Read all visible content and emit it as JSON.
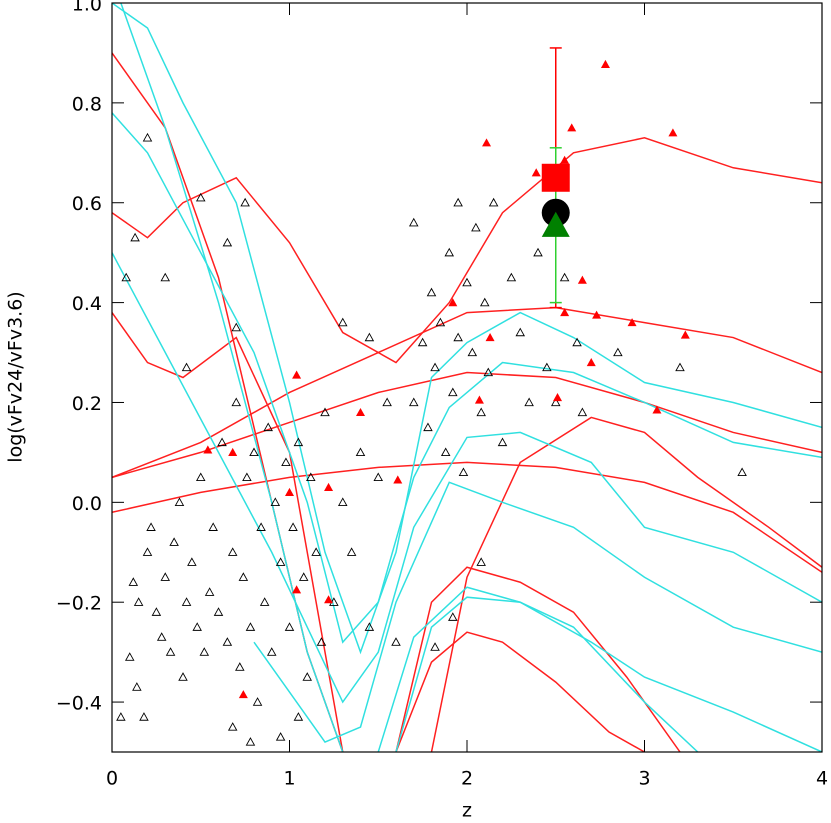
{
  "chart_data": {
    "type": "scatter",
    "x_label": "z",
    "y_label": "log(vFv24/vFv3.6)",
    "xlim": [
      0,
      4
    ],
    "ylim": [
      -0.5,
      1.0
    ],
    "xticks": [
      0,
      1,
      2,
      3,
      4
    ],
    "yticks": [
      {
        "value": -0.4,
        "label": "−0.4"
      },
      {
        "value": -0.2,
        "label": "−0.2"
      },
      {
        "value": 0.0,
        "label": "0.0"
      },
      0.2,
      0.4,
      0.6,
      0.8,
      {
        "value": 1.0,
        "label": "1.0"
      }
    ],
    "series": [
      {
        "marker": "line",
        "color": "#ff2020",
        "x": [
          0,
          0.2,
          0.4,
          0.7,
          1.0,
          1.3,
          1.6,
          1.9,
          2.2,
          2.6,
          3.0,
          3.5,
          4.0
        ],
        "values": [
          0.58,
          0.53,
          0.6,
          0.65,
          0.52,
          0.34,
          0.28,
          0.4,
          0.58,
          0.7,
          0.73,
          0.67,
          0.64
        ]
      },
      {
        "marker": "line",
        "color": "#ff2020",
        "x": [
          0,
          0.2,
          0.4,
          0.7,
          1.0,
          1.2,
          1.3
        ],
        "values": [
          0.38,
          0.28,
          0.25,
          0.33,
          0.1,
          -0.3,
          -0.5
        ]
      },
      {
        "marker": "line",
        "color": "#ff2020",
        "x": [
          0,
          0.5,
          1,
          1.5,
          2,
          2.5,
          3,
          3.5,
          4
        ],
        "values": [
          0.05,
          0.12,
          0.22,
          0.3,
          0.38,
          0.39,
          0.36,
          0.33,
          0.26
        ]
      },
      {
        "marker": "line",
        "color": "#ff2020",
        "x": [
          0,
          0.5,
          1,
          1.5,
          2,
          2.5,
          3,
          3.5,
          4
        ],
        "values": [
          0.05,
          0.1,
          0.16,
          0.22,
          0.26,
          0.25,
          0.2,
          0.14,
          0.1
        ]
      },
      {
        "marker": "line",
        "color": "#ff2020",
        "x": [
          0,
          0.5,
          1,
          1.5,
          2,
          2.5,
          3,
          3.5,
          4
        ],
        "values": [
          -0.02,
          0.02,
          0.05,
          0.07,
          0.08,
          0.07,
          0.04,
          -0.02,
          -0.14
        ]
      },
      {
        "marker": "line",
        "color": "#ff2020",
        "x": [
          0,
          0.3,
          0.6,
          0.9,
          1.1,
          1.3
        ],
        "values": [
          0.9,
          0.75,
          0.45,
          0.0,
          -0.3,
          -0.5
        ]
      },
      {
        "marker": "line",
        "color": "#ff2020",
        "x": [
          1.6,
          1.8,
          2.0,
          2.2,
          2.5,
          2.8,
          3.0
        ],
        "values": [
          -0.5,
          -0.32,
          -0.26,
          -0.28,
          -0.36,
          -0.46,
          -0.5
        ]
      },
      {
        "marker": "line",
        "color": "#ff2020",
        "x": [
          1.6,
          1.8,
          2.0,
          2.3,
          2.6,
          2.9,
          3.2
        ],
        "values": [
          -0.5,
          -0.2,
          -0.13,
          -0.16,
          -0.22,
          -0.35,
          -0.5
        ]
      },
      {
        "marker": "line",
        "color": "#ff2020",
        "x": [
          1.8,
          2.0,
          2.3,
          2.7,
          3.0,
          3.3,
          3.7,
          4.0
        ],
        "values": [
          -0.5,
          -0.15,
          0.08,
          0.17,
          0.14,
          0.05,
          -0.05,
          -0.13
        ]
      },
      {
        "marker": "line",
        "color": "#30e0e0",
        "x": [
          0,
          0.2,
          0.4,
          0.7,
          1.0,
          1.2,
          1.4,
          1.6,
          1.8,
          2.0,
          2.3,
          2.6,
          3.0,
          3.5,
          4.0
        ],
        "values": [
          1.0,
          0.95,
          0.8,
          0.6,
          0.2,
          -0.1,
          -0.3,
          -0.1,
          0.25,
          0.32,
          0.38,
          0.33,
          0.24,
          0.2,
          0.15
        ]
      },
      {
        "marker": "line",
        "color": "#30e0e0",
        "x": [
          0,
          0.2,
          0.5,
          0.8,
          1.1,
          1.3,
          1.5,
          1.7,
          1.9,
          2.2,
          2.6,
          3.0,
          3.5,
          4.0
        ],
        "values": [
          0.78,
          0.7,
          0.5,
          0.3,
          0.0,
          -0.28,
          -0.2,
          0.05,
          0.19,
          0.28,
          0.26,
          0.2,
          0.12,
          0.09
        ]
      },
      {
        "marker": "line",
        "color": "#30e0e0",
        "x": [
          0,
          0.3,
          0.6,
          0.9,
          1.1,
          1.3,
          1.5,
          1.7,
          2.0,
          2.3,
          2.7,
          3.0,
          3.5,
          4.0
        ],
        "values": [
          0.5,
          0.3,
          0.1,
          -0.1,
          -0.25,
          -0.4,
          -0.3,
          -0.05,
          0.13,
          0.14,
          0.08,
          -0.05,
          -0.1,
          -0.2
        ]
      },
      {
        "marker": "line",
        "color": "#30e0e0",
        "x": [
          0.8,
          1.0,
          1.2,
          1.4,
          1.6,
          1.9,
          2.2,
          2.6,
          3.0,
          3.5,
          4.0
        ],
        "values": [
          -0.28,
          -0.38,
          -0.48,
          -0.45,
          -0.2,
          0.04,
          0.0,
          -0.05,
          -0.15,
          -0.25,
          -0.3
        ]
      },
      {
        "marker": "line",
        "color": "#30e0e0",
        "x": [
          1.5,
          1.7,
          2.0,
          2.3,
          2.7,
          3.0,
          3.5,
          4.0
        ],
        "values": [
          -0.5,
          -0.27,
          -0.17,
          -0.2,
          -0.28,
          -0.35,
          -0.42,
          -0.5
        ]
      },
      {
        "marker": "line",
        "color": "#30e0e0",
        "x": [
          1.6,
          1.8,
          2.0,
          2.3,
          2.6,
          3.0,
          3.3
        ],
        "values": [
          -0.5,
          -0.25,
          -0.19,
          -0.2,
          -0.25,
          -0.4,
          -0.5
        ]
      },
      {
        "marker": "line",
        "color": "#30e0e0",
        "x": [
          0.05,
          0.3,
          0.6,
          0.9,
          1.1,
          1.3
        ],
        "values": [
          1.0,
          0.75,
          0.4,
          0.0,
          -0.3,
          -0.5
        ]
      },
      {
        "marker": "open-triangle",
        "color": "#000000",
        "x": [
          0.12,
          0.15,
          0.1,
          0.14,
          0.18,
          0.2,
          0.22,
          0.25,
          0.28,
          0.3,
          0.33,
          0.35,
          0.38,
          0.4,
          0.42,
          0.45,
          0.48,
          0.5,
          0.52,
          0.55,
          0.57,
          0.6,
          0.62,
          0.65,
          0.68,
          0.7,
          0.72,
          0.74,
          0.76,
          0.78,
          0.8,
          0.82,
          0.84,
          0.86,
          0.88,
          0.9,
          0.92,
          0.95,
          0.98,
          1.0,
          1.02,
          1.05,
          1.08,
          1.1,
          1.12,
          1.15,
          1.18,
          1.2,
          1.25,
          1.3,
          1.35,
          1.4,
          1.45,
          1.5,
          1.55,
          1.6,
          0.05,
          0.08,
          0.13,
          0.2,
          0.3,
          0.42,
          0.5,
          0.65,
          0.75,
          0.7,
          0.78,
          0.68,
          0.95,
          1.05,
          1.7,
          1.75,
          1.78,
          1.8,
          1.82,
          1.85,
          1.88,
          1.9,
          1.92,
          1.95,
          1.98,
          2.0,
          2.03,
          2.05,
          2.08,
          2.1,
          2.12,
          2.15,
          2.2,
          2.25,
          2.3,
          2.35,
          2.4,
          2.45,
          2.55,
          2.62,
          1.95,
          2.08,
          1.3,
          1.45,
          1.7,
          3.55,
          3.2,
          2.85,
          2.65,
          1.82,
          1.92,
          2.5
        ],
        "values": [
          -0.16,
          -0.2,
          -0.31,
          -0.37,
          -0.43,
          -0.1,
          -0.05,
          -0.22,
          -0.27,
          -0.15,
          -0.3,
          -0.08,
          0.0,
          -0.35,
          -0.2,
          -0.12,
          -0.25,
          0.05,
          -0.3,
          -0.18,
          -0.05,
          -0.22,
          0.12,
          -0.28,
          -0.1,
          0.2,
          -0.33,
          -0.15,
          0.05,
          -0.25,
          0.1,
          -0.4,
          -0.05,
          -0.2,
          0.15,
          -0.3,
          0.0,
          -0.12,
          0.08,
          -0.25,
          -0.05,
          0.12,
          -0.15,
          -0.35,
          0.05,
          -0.1,
          -0.28,
          0.18,
          -0.2,
          0.0,
          -0.1,
          0.1,
          -0.25,
          0.05,
          0.2,
          -0.28,
          -0.43,
          0.45,
          0.53,
          0.73,
          0.45,
          0.27,
          0.61,
          0.52,
          0.6,
          0.35,
          -0.48,
          -0.45,
          -0.47,
          -0.43,
          0.2,
          0.32,
          0.15,
          0.42,
          0.27,
          0.36,
          0.1,
          0.5,
          0.22,
          0.33,
          0.06,
          0.44,
          0.3,
          0.55,
          0.18,
          0.4,
          0.26,
          0.6,
          0.12,
          0.45,
          0.34,
          0.2,
          0.5,
          0.27,
          0.45,
          0.32,
          0.6,
          -0.12,
          0.36,
          0.33,
          0.56,
          0.06,
          0.27,
          0.3,
          0.18,
          -0.29,
          -0.23,
          0.2
        ]
      },
      {
        "marker": "filled-triangle",
        "color": "#ff0000",
        "x": [
          2.78,
          3.16,
          2.11,
          2.59,
          2.39,
          2.65,
          2.55,
          2.73,
          2.93,
          3.23,
          2.7,
          2.13,
          2.51,
          2.07,
          3.07,
          1.04,
          1.4,
          0.54,
          0.68,
          1.0,
          1.22,
          1.61,
          1.04,
          1.22,
          0.74,
          1.92,
          2.55
        ],
        "values": [
          0.877,
          0.74,
          0.72,
          0.75,
          0.66,
          0.445,
          0.38,
          0.375,
          0.36,
          0.335,
          0.28,
          0.33,
          0.21,
          0.205,
          0.185,
          0.255,
          0.18,
          0.105,
          0.1,
          0.02,
          0.03,
          0.045,
          -0.175,
          -0.195,
          -0.385,
          0.4,
          0.685
        ]
      },
      {
        "marker": "errorbar",
        "color": "#ff0000",
        "x": [
          2.5
        ],
        "low": [
          0.39
        ],
        "high": [
          0.91
        ]
      },
      {
        "marker": "errorbar",
        "color": "#30d030",
        "x": [
          2.5
        ],
        "low": [
          0.4
        ],
        "high": [
          0.71
        ]
      },
      {
        "marker": "square",
        "color": "#ff0000",
        "x": [
          2.5
        ],
        "values": [
          0.65
        ]
      },
      {
        "marker": "circle",
        "color": "#000000",
        "x": [
          2.5
        ],
        "values": [
          0.58
        ]
      },
      {
        "marker": "big-triangle",
        "color": "#008000",
        "x": [
          2.5
        ],
        "values": [
          0.55
        ]
      }
    ]
  }
}
